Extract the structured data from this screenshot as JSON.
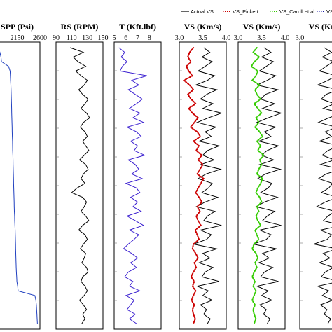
{
  "legend": {
    "entries": [
      {
        "label": "Actual VS",
        "color": "#000000",
        "style": "solid"
      },
      {
        "label": "VS_Pickett",
        "color": "#cc0000",
        "style": "dotted"
      },
      {
        "label": "VS_Caroll et al.",
        "color": "#33cc00",
        "style": "dotted"
      },
      {
        "label": "VS_",
        "color": "#1a1aa6",
        "style": "dotted"
      }
    ]
  },
  "chart_data": [
    {
      "type": "line",
      "title": "SPP (Psi)",
      "xlim": [
        1700,
        2600
      ],
      "tick_labels": [
        "2150",
        "2600"
      ],
      "series": [
        {
          "name": "SPP",
          "color": "#1f3fbf",
          "orientation": "vertical",
          "values": [
            1780,
            1810,
            1830,
            1840,
            1980,
            2010,
            2015,
            2020,
            2025,
            2030,
            2032,
            2035,
            2038,
            2040,
            2042,
            2045,
            2048,
            2050,
            2052,
            2055,
            2058,
            2060,
            2062,
            2065,
            2068,
            2070,
            2072,
            2075,
            2078,
            2080,
            2082,
            2085,
            2088,
            2090,
            2092,
            2095,
            2100,
            2102,
            2105,
            2110,
            2112,
            2115,
            2118,
            2120,
            2122,
            2125,
            2128,
            2130,
            2135,
            2140,
            2145,
            2160,
            2170,
            2500,
            2520,
            2530,
            2535,
            2540,
            2545,
            2550
          ]
        }
      ]
    },
    {
      "type": "line",
      "title": "RS (RPM)",
      "xlim": [
        90,
        150
      ],
      "tick_labels": [
        "90",
        "110",
        "130",
        "150"
      ],
      "series": [
        {
          "name": "RS",
          "color": "#000000",
          "orientation": "vertical",
          "values": [
            108,
            125,
            112,
            118,
            128,
            115,
            122,
            130,
            126,
            119,
            124,
            131,
            127,
            122,
            129,
            133,
            125,
            121,
            127,
            130,
            124,
            128,
            132,
            126,
            120,
            128,
            131,
            125,
            122,
            127,
            117,
            110,
            124,
            129,
            126,
            122,
            128,
            132,
            124,
            119,
            127,
            130,
            125,
            121,
            128,
            126,
            123,
            129,
            131,
            124,
            122,
            127,
            130,
            126,
            120,
            125,
            129,
            124,
            127,
            123
          ]
        }
      ]
    },
    {
      "type": "line",
      "title": "T (Kft.lbf)",
      "xlim": [
        5,
        9
      ],
      "tick_labels": [
        "5",
        "6",
        "7",
        "8"
      ],
      "series": [
        {
          "name": "T",
          "color": "#3a1fd0",
          "orientation": "vertical",
          "values": [
            5.4,
            5.9,
            5.6,
            6.1,
            5.7,
            5.5,
            7.8,
            6.5,
            7.1,
            6.2,
            6.8,
            7.4,
            6.9,
            6.3,
            7.2,
            6.6,
            7.5,
            6.1,
            6.9,
            7.3,
            6.4,
            7.0,
            6.7,
            7.6,
            6.2,
            6.8,
            7.1,
            6.5,
            7.4,
            6.0,
            6.9,
            7.2,
            6.4,
            7.0,
            6.6,
            7.3,
            6.1,
            6.8,
            7.5,
            6.3,
            7.1,
            6.7,
            6.2,
            5.8,
            6.5,
            7.0,
            6.4,
            6.9,
            6.2,
            5.9,
            6.6,
            6.3,
            7.2,
            6.0,
            6.7,
            6.4,
            6.1,
            6.8,
            6.3,
            6.9
          ]
        }
      ]
    },
    {
      "type": "line",
      "title": "VS (Km/s)",
      "xlim": [
        3.0,
        4.0
      ],
      "tick_labels": [
        "3.0",
        "3.5",
        "4.0"
      ],
      "series": [
        {
          "name": "Actual VS",
          "color": "#000000",
          "style": "solid",
          "orientation": "vertical",
          "values": [
            3.52,
            3.65,
            3.48,
            3.7,
            3.55,
            3.4,
            3.75,
            3.6,
            3.35,
            3.8,
            3.58,
            3.45,
            3.72,
            3.5,
            3.9,
            3.62,
            3.38,
            3.78,
            3.55,
            3.68,
            3.42,
            3.85,
            3.6,
            3.5,
            3.74,
            3.46,
            3.88,
            3.57,
            3.4,
            3.7,
            3.62,
            3.48,
            3.82,
            3.55,
            3.36,
            3.76,
            3.6,
            3.52,
            3.9,
            3.45,
            3.68,
            3.58,
            3.3,
            3.8,
            3.5,
            3.65,
            3.42,
            3.72,
            3.55,
            3.48,
            3.85,
            3.38,
            3.62,
            3.5,
            3.7,
            3.45,
            3.58,
            3.52,
            3.66,
            3.6
          ]
        },
        {
          "name": "VS_Pickett",
          "color": "#cc0000",
          "style": "dotted",
          "orientation": "vertical",
          "values": [
            3.3,
            3.22,
            3.18,
            3.25,
            3.15,
            3.2,
            3.28,
            3.1,
            3.22,
            3.3,
            3.18,
            3.25,
            3.35,
            3.2,
            3.28,
            3.4,
            3.32,
            3.24,
            3.38,
            3.45,
            3.3,
            3.42,
            3.36,
            3.48,
            3.4,
            3.5,
            3.44,
            3.38,
            3.52,
            3.46,
            3.4,
            3.35,
            3.42,
            3.48,
            3.38,
            3.44,
            3.36,
            3.4,
            3.46,
            3.34,
            3.38,
            3.42,
            3.3,
            3.28,
            3.35,
            3.4,
            3.32,
            3.36,
            3.3,
            3.25,
            3.32,
            3.28,
            3.35,
            3.3,
            3.26,
            3.32,
            3.28,
            3.3,
            3.34,
            3.3
          ]
        }
      ]
    },
    {
      "type": "line",
      "title": "VS (Km/s)",
      "xlim": [
        3.0,
        4.0
      ],
      "tick_labels": [
        "3.0",
        "3.5",
        "4.0"
      ],
      "series": [
        {
          "name": "Actual VS",
          "color": "#000000",
          "style": "solid",
          "orientation": "vertical",
          "values": [
            3.55,
            3.7,
            3.5,
            3.75,
            3.6,
            3.45,
            3.8,
            3.62,
            3.4,
            3.85,
            3.58,
            3.48,
            3.78,
            3.52,
            3.92,
            3.64,
            3.4,
            3.8,
            3.56,
            3.7,
            3.44,
            3.86,
            3.62,
            3.5,
            3.76,
            3.46,
            3.9,
            3.58,
            3.42,
            3.72,
            3.64,
            3.48,
            3.84,
            3.56,
            3.38,
            3.78,
            3.62,
            3.52,
            3.92,
            3.46,
            3.7,
            3.6,
            3.32,
            3.82,
            3.52,
            3.66,
            3.44,
            3.74,
            3.56,
            3.48,
            3.86,
            3.4,
            3.64,
            3.5,
            3.72,
            3.46,
            3.6,
            3.54,
            3.68,
            3.62
          ]
        },
        {
          "name": "VS_Caroll et al.",
          "color": "#33cc00",
          "style": "dotted",
          "orientation": "vertical",
          "values": [
            3.4,
            3.32,
            3.45,
            3.35,
            3.28,
            3.42,
            3.38,
            3.3,
            3.46,
            3.36,
            3.4,
            3.48,
            3.34,
            3.42,
            3.5,
            3.38,
            3.44,
            3.36,
            3.46,
            3.52,
            3.4,
            3.48,
            3.42,
            3.55,
            3.46,
            3.5,
            3.44,
            3.4,
            3.52,
            3.48,
            3.42,
            3.38,
            3.46,
            3.5,
            3.4,
            3.44,
            3.38,
            3.42,
            3.48,
            3.36,
            3.4,
            3.44,
            3.34,
            3.3,
            3.38,
            3.42,
            3.36,
            3.4,
            3.34,
            3.3,
            3.36,
            3.32,
            3.38,
            3.34,
            3.3,
            3.36,
            3.32,
            3.34,
            3.38,
            3.34
          ]
        }
      ]
    },
    {
      "type": "line",
      "title": "VS (Km",
      "xlim": [
        3.0,
        4.0
      ],
      "tick_labels": [
        "3.0"
      ],
      "series": [
        {
          "name": "Actual VS",
          "color": "#000000",
          "style": "solid",
          "orientation": "vertical",
          "values": [
            3.52,
            3.68,
            3.48,
            3.72,
            3.56,
            3.42,
            3.78,
            3.6,
            3.38,
            3.82,
            3.56,
            3.46,
            3.74,
            3.5,
            3.9,
            3.62,
            3.4,
            3.78,
            3.54,
            3.68,
            3.42,
            3.84,
            3.6,
            3.48,
            3.74,
            3.44,
            3.88,
            3.56,
            3.4,
            3.7,
            3.62,
            3.46,
            3.82,
            3.54,
            3.36,
            3.76,
            3.6,
            3.5,
            3.9,
            3.44,
            3.68,
            3.58,
            3.3,
            3.8,
            3.5,
            3.64,
            3.42,
            3.72,
            3.54,
            3.46,
            3.84,
            3.38,
            3.62,
            3.48,
            3.7,
            3.44,
            3.58,
            3.52,
            3.66,
            3.6
          ]
        }
      ]
    }
  ]
}
